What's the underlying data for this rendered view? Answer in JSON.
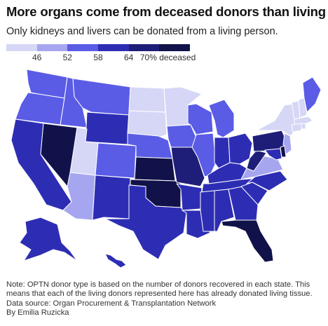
{
  "title": "More organs come from deceased donors than living",
  "subtitle": "Only kidneys and livers can be donated from a living person.",
  "legend": {
    "colors": [
      "#d6d6f6",
      "#a6a6f0",
      "#5a5ce6",
      "#2d2db4",
      "#1e1e78",
      "#12124a"
    ],
    "labels": [
      "46",
      "52",
      "58",
      "64",
      "70% deceased"
    ]
  },
  "map_colors": {
    "c1": "#d6d6f6",
    "c2": "#a6a6f0",
    "c3": "#5a5ce6",
    "c4": "#2d2db4",
    "c5": "#1e1e78",
    "c6": "#12124a"
  },
  "notes": {
    "line1": "Note: OPTN donor type is based on the number of donors recovered in each state. This",
    "line2": "means that each of the living donors represented here has already donated living tissue.",
    "source": "Data source: Organ Procurement & Transplantation Network",
    "byline": "By Emilia Ruzicka"
  }
}
